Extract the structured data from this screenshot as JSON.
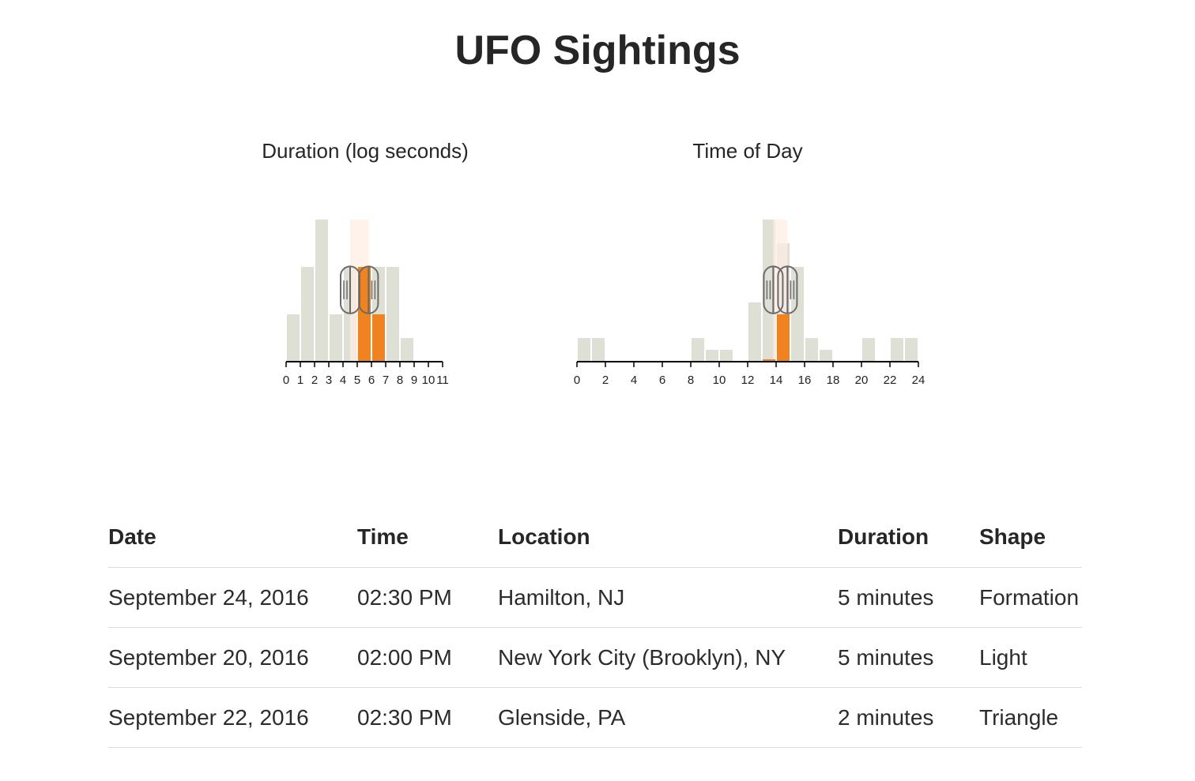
{
  "page": {
    "title": "UFO Sightings"
  },
  "colors": {
    "bar": "#dedfd5",
    "selected": "#f0821f",
    "brush": "#fdeee3",
    "handle": "#6b6b6b",
    "axis": "#000000"
  },
  "chart_data": [
    {
      "type": "bar",
      "title": "Duration (log seconds)",
      "xlim": [
        0,
        11
      ],
      "ticks": [
        0,
        1,
        2,
        3,
        4,
        5,
        6,
        7,
        8,
        9,
        10,
        11
      ],
      "bins": [
        0,
        1,
        2,
        3,
        4,
        5,
        6,
        7,
        8,
        9,
        10
      ],
      "values": [
        1,
        2,
        3,
        1,
        2,
        2,
        2,
        2,
        0.5,
        0,
        0
      ],
      "selected": [
        0,
        0,
        0,
        0,
        0,
        2,
        1,
        0,
        0,
        0,
        0
      ],
      "ylim": [
        0,
        3
      ],
      "brush": [
        4.5,
        5.8
      ]
    },
    {
      "type": "bar",
      "title": "Time of Day",
      "xlim": [
        0,
        24
      ],
      "ticks": [
        0,
        2,
        4,
        6,
        8,
        10,
        12,
        14,
        16,
        18,
        20,
        22,
        24
      ],
      "bins": [
        0,
        1,
        2,
        3,
        4,
        5,
        6,
        7,
        8,
        9,
        10,
        11,
        12,
        13,
        14,
        15,
        16,
        17,
        18,
        19,
        20,
        21,
        22,
        23
      ],
      "values": [
        1,
        1,
        0,
        0,
        0,
        0,
        0,
        0,
        1,
        0.5,
        0.5,
        0,
        2.5,
        6,
        5,
        4,
        1,
        0.5,
        0,
        0,
        1,
        0,
        1,
        1
      ],
      "selected": [
        0,
        0,
        0,
        0,
        0,
        0,
        0,
        0,
        0,
        0,
        0,
        0,
        0,
        0.1,
        2,
        0,
        0,
        0,
        0,
        0,
        0,
        0,
        0,
        0
      ],
      "ylim": [
        0,
        6
      ],
      "brush": [
        13.8,
        14.8
      ]
    }
  ],
  "table": {
    "columns": [
      "Date",
      "Time",
      "Location",
      "Duration",
      "Shape"
    ],
    "rows": [
      [
        "September 24, 2016",
        "02:30 PM",
        "Hamilton, NJ",
        "5 minutes",
        "Formation"
      ],
      [
        "September 20, 2016",
        "02:00 PM",
        "New York City (Brooklyn), NY",
        "5 minutes",
        "Light"
      ],
      [
        "September 22, 2016",
        "02:30 PM",
        "Glenside, PA",
        "2 minutes",
        "Triangle"
      ]
    ]
  }
}
